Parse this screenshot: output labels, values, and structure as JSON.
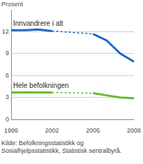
{
  "chart_data": {
    "type": "line",
    "y_label": "Prosent",
    "source": "Kilde: Befolkningsstatistikk og Sosialhjelpsstatistikk, Statistisk sentralbyrå.",
    "x": [
      1999,
      2000,
      2001,
      2002,
      2003,
      2004,
      2005,
      2006,
      2007,
      2008
    ],
    "series": [
      {
        "name": "Innvandrere i alt",
        "color": "#1f66c8",
        "values": [
          12.2,
          12.2,
          12.3,
          12.1,
          null,
          null,
          11.7,
          10.8,
          9.0,
          7.9
        ]
      },
      {
        "name": "Hele befolkningen",
        "color": "#66bb33",
        "values": [
          3.7,
          3.7,
          3.7,
          3.7,
          null,
          null,
          3.6,
          3.3,
          3.0,
          2.9
        ]
      }
    ],
    "xlim": [
      1999,
      2008
    ],
    "xticks": [
      1999,
      2002,
      2005,
      2008
    ],
    "ylim": [
      0,
      15
    ],
    "yticks": [
      0,
      3,
      6,
      9,
      12
    ],
    "grid": true
  }
}
